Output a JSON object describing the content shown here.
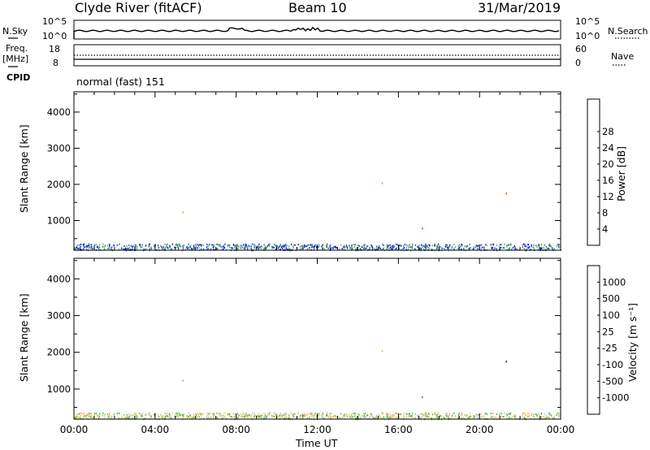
{
  "header": {
    "station": "Clyde River (fitACF)",
    "beam": "Beam 10",
    "date": "31/Mar/2019"
  },
  "top_panels": {
    "nsky_label": "N.Sky",
    "nsearch_label": "N.Search",
    "nsky_ticks": [
      "10^5",
      "10^0"
    ],
    "nsearch_ticks": [
      "10^5",
      "10^0"
    ],
    "freq_label": "Freq.",
    "freq_unit": "[MHz]",
    "freq_ticks": [
      "18",
      "8"
    ],
    "nave_label": "Nave",
    "nave_ticks": [
      "60",
      "0"
    ],
    "cpid_label": "CPID",
    "cpid_value": "normal (fast) 151"
  },
  "colors": {
    "power_scale": [
      "#0000ff",
      "#1f4fb4",
      "#3c8f68",
      "#59a84b",
      "#a8d03c",
      "#ffc400",
      "#ff9e00",
      "#ff6600",
      "#ff1f00"
    ],
    "velocity_scale": [
      "#ff0000",
      "#ff5a00",
      "#ff8c00",
      "#ffba40",
      "#bfbfbf",
      "#8fd44a",
      "#4aa83a",
      "#2f7f58",
      "#1f4fb4"
    ]
  },
  "chart_data": [
    {
      "type": "heatmap",
      "name": "power",
      "ylabel": "Slant Range [km]",
      "y_ticks": [
        "1000",
        "2000",
        "3000",
        "4000"
      ],
      "y_tick_values": [
        1000,
        2000,
        3000,
        4000
      ],
      "ylim": [
        180,
        4560
      ],
      "x_ticks": [
        "00:00",
        "04:00",
        "08:00",
        "12:00",
        "16:00",
        "20:00",
        "00:00"
      ],
      "x_tick_values": [
        0,
        4,
        8,
        12,
        16,
        20,
        24
      ],
      "xlim": [
        0,
        24
      ],
      "colorbar_label": "Power [dB]",
      "colorbar_ticks": [
        "4",
        "8",
        "12",
        "16",
        "20",
        "24",
        "28"
      ],
      "colorbar_range": [
        0,
        30
      ]
    },
    {
      "type": "heatmap",
      "name": "velocity",
      "ylabel": "Slant Range [km]",
      "y_ticks": [
        "1000",
        "2000",
        "3000",
        "4000"
      ],
      "y_tick_values": [
        1000,
        2000,
        3000,
        4000
      ],
      "ylim": [
        180,
        4560
      ],
      "x_ticks": [
        "00:00",
        "04:00",
        "08:00",
        "12:00",
        "16:00",
        "20:00",
        "00:00"
      ],
      "x_tick_values": [
        0,
        4,
        8,
        12,
        16,
        20,
        24
      ],
      "xlim": [
        0,
        24
      ],
      "xlabel": "Time UT",
      "colorbar_label": "Velocity [m s⁻¹]",
      "colorbar_ticks": [
        "1000",
        "500",
        "100",
        "25",
        "-25",
        "-100",
        "-500",
        "-1000"
      ]
    }
  ]
}
